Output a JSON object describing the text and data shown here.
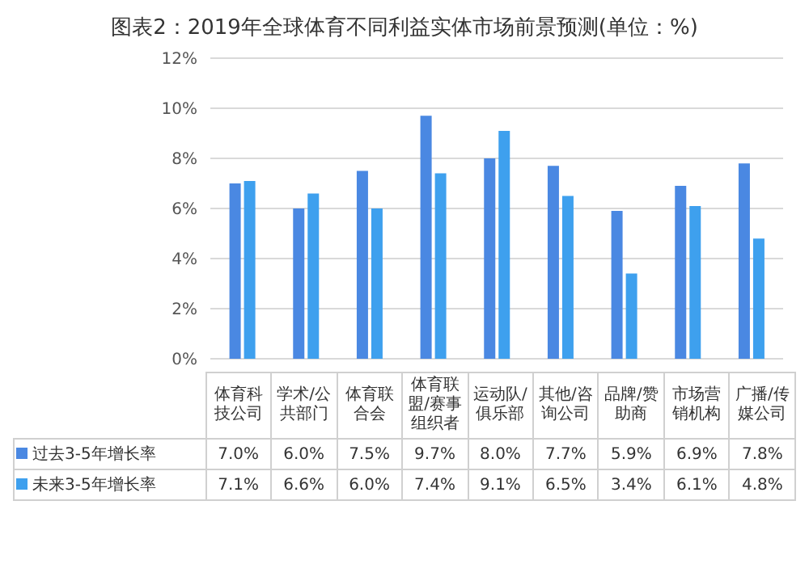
{
  "chart_data": {
    "type": "bar",
    "title": "图表2：2019年全球体育不同利益实体市场前景预测(单位：%)",
    "categories": [
      "体育科技公司",
      "学术/公共部门",
      "体育联合会",
      "体育联盟/赛事组织者",
      "运动队/俱乐部",
      "其他/咨询公司",
      "品牌/赞助商",
      "市场营销机构",
      "广播/传媒公司"
    ],
    "series": [
      {
        "name": "过去3-5年增长率",
        "color": "#4a88e2",
        "values": [
          7.0,
          6.0,
          7.5,
          9.7,
          8.0,
          7.7,
          5.9,
          6.9,
          7.8
        ],
        "value_labels": [
          "7.0%",
          "6.0%",
          "7.5%",
          "9.7%",
          "8.0%",
          "7.7%",
          "5.9%",
          "6.9%",
          "7.8%"
        ]
      },
      {
        "name": "未来3-5年增长率",
        "color": "#3ea0ee",
        "values": [
          7.1,
          6.6,
          6.0,
          7.4,
          9.1,
          6.5,
          3.4,
          6.1,
          4.8
        ],
        "value_labels": [
          "7.1%",
          "6.6%",
          "6.0%",
          "7.4%",
          "9.1%",
          "6.5%",
          "3.4%",
          "6.1%",
          "4.8%"
        ]
      }
    ],
    "ylim": [
      0,
      12
    ],
    "yticks": [
      {
        "value": 0,
        "label": "0%"
      },
      {
        "value": 2,
        "label": "2%"
      },
      {
        "value": 4,
        "label": "4%"
      },
      {
        "value": 6,
        "label": "6%"
      },
      {
        "value": 8,
        "label": "8%"
      },
      {
        "value": 10,
        "label": "10%"
      },
      {
        "value": 12,
        "label": "12%"
      }
    ],
    "grid": "y",
    "legend": "bottom"
  }
}
